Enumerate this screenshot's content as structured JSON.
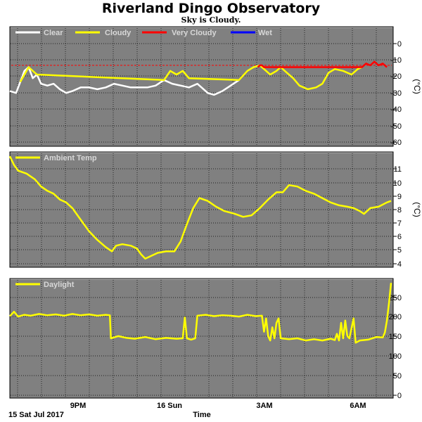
{
  "title": "Riverland Dingo Observatory",
  "subtitle": "Sky is Cloudy.",
  "date_label": "15 Sat Jul 2017",
  "x_axis_label": "Time",
  "x_ticks": [
    "9PM",
    "16 Sun",
    "3AM",
    "6AM"
  ],
  "colors": {
    "panel_bg": "#808080",
    "clear": "#ffffff",
    "cloudy": "#ffff00",
    "very_cloudy": "#ff0000",
    "wet": "#0000ff",
    "threshold": "#ff0000"
  },
  "chart_data": [
    {
      "type": "line",
      "legend": [
        "Clear",
        "Cloudy",
        "Very Cloudy",
        "Wet"
      ],
      "ylabel": "(°C)",
      "ylim": [
        -60,
        5
      ],
      "yticks": [
        "0",
        "-10",
        "-20",
        "-30",
        "-40",
        "-50",
        "-60"
      ],
      "threshold": -16,
      "series": [
        {
          "name": "Clear",
          "points": [
            [
              0.0,
              -30
            ],
            [
              0.3,
              -31
            ],
            [
              0.5,
              -25
            ],
            [
              0.7,
              -19
            ],
            [
              0.9,
              -17
            ],
            [
              1.1,
              -23
            ],
            [
              1.3,
              -21
            ],
            [
              1.5,
              -26
            ],
            [
              1.8,
              -27
            ],
            [
              2.1,
              -26
            ],
            [
              2.4,
              -29
            ],
            [
              2.7,
              -31
            ],
            [
              3.0,
              -30
            ],
            [
              3.4,
              -28
            ],
            [
              3.8,
              -28
            ],
            [
              4.2,
              -29
            ],
            [
              4.6,
              -28
            ],
            [
              5.0,
              -26
            ],
            [
              5.4,
              -27
            ],
            [
              5.8,
              -28
            ],
            [
              6.2,
              -28
            ],
            [
              6.6,
              -28
            ],
            [
              7.0,
              -27
            ],
            [
              7.4,
              -24
            ],
            [
              7.8,
              -26
            ],
            [
              8.2,
              -27
            ],
            [
              8.6,
              -28
            ],
            [
              9.0,
              -26
            ],
            [
              9.3,
              -29
            ],
            [
              9.5,
              -31
            ],
            [
              9.8,
              -32
            ],
            [
              10.2,
              -30
            ],
            [
              10.6,
              -27
            ],
            [
              11.0,
              -24
            ]
          ]
        },
        {
          "name": "Cloudy",
          "points": [
            [
              0.5,
              -25
            ],
            [
              0.9,
              -17
            ],
            [
              1.3,
              -21
            ],
            [
              7.4,
              -24
            ],
            [
              7.7,
              -19
            ],
            [
              8.0,
              -21
            ],
            [
              8.3,
              -19
            ],
            [
              8.6,
              -23
            ],
            [
              11.0,
              -24
            ],
            [
              11.4,
              -19
            ],
            [
              11.7,
              -17
            ],
            [
              12.0,
              -16
            ],
            [
              12.2,
              -18
            ],
            [
              12.5,
              -21
            ],
            [
              12.8,
              -19
            ],
            [
              13.0,
              -17
            ],
            [
              13.3,
              -20
            ],
            [
              13.6,
              -23
            ],
            [
              13.9,
              -27
            ],
            [
              14.3,
              -29
            ],
            [
              14.7,
              -28
            ],
            [
              15.0,
              -26
            ],
            [
              15.3,
              -20
            ],
            [
              15.6,
              -18
            ],
            [
              16.0,
              -19
            ],
            [
              16.4,
              -21
            ],
            [
              16.7,
              -18
            ],
            [
              16.9,
              -17
            ]
          ]
        },
        {
          "name": "Very Cloudy",
          "points": [
            [
              11.9,
              -17
            ],
            [
              12.0,
              -16
            ],
            [
              12.1,
              -16
            ],
            [
              12.2,
              -17
            ],
            [
              16.9,
              -17
            ],
            [
              17.1,
              -15
            ],
            [
              17.3,
              -16
            ],
            [
              17.5,
              -14
            ],
            [
              17.7,
              -16
            ],
            [
              17.9,
              -15
            ],
            [
              18.1,
              -17
            ]
          ]
        },
        {
          "name": "Wet",
          "points": []
        }
      ]
    },
    {
      "type": "line",
      "legend": [
        "Ambient Temp"
      ],
      "ylabel": "(°C)",
      "ylim": [
        3.5,
        11.5
      ],
      "yticks": [
        "11",
        "10",
        "9",
        "8",
        "7",
        "6",
        "5",
        "4"
      ],
      "series": [
        {
          "name": "Ambient Temp",
          "points": [
            [
              0.0,
              11.2
            ],
            [
              0.2,
              10.6
            ],
            [
              0.4,
              10.2
            ],
            [
              0.8,
              10.0
            ],
            [
              1.2,
              9.6
            ],
            [
              1.5,
              9.1
            ],
            [
              1.8,
              8.8
            ],
            [
              2.1,
              8.6
            ],
            [
              2.4,
              8.2
            ],
            [
              2.7,
              8.0
            ],
            [
              3.0,
              7.6
            ],
            [
              3.4,
              6.8
            ],
            [
              3.8,
              6.0
            ],
            [
              4.2,
              5.4
            ],
            [
              4.6,
              4.9
            ],
            [
              4.9,
              4.6
            ],
            [
              5.1,
              5.0
            ],
            [
              5.4,
              5.1
            ],
            [
              5.8,
              5.0
            ],
            [
              6.1,
              4.8
            ],
            [
              6.3,
              4.4
            ],
            [
              6.5,
              4.1
            ],
            [
              6.8,
              4.3
            ],
            [
              7.1,
              4.5
            ],
            [
              7.5,
              4.6
            ],
            [
              7.9,
              4.6
            ],
            [
              8.2,
              5.3
            ],
            [
              8.5,
              6.5
            ],
            [
              8.8,
              7.6
            ],
            [
              9.1,
              8.3
            ],
            [
              9.5,
              8.1
            ],
            [
              9.9,
              7.7
            ],
            [
              10.3,
              7.4
            ],
            [
              10.8,
              7.2
            ],
            [
              11.2,
              7.0
            ],
            [
              11.6,
              7.1
            ],
            [
              12.0,
              7.6
            ],
            [
              12.4,
              8.2
            ],
            [
              12.8,
              8.7
            ],
            [
              13.1,
              8.7
            ],
            [
              13.4,
              9.2
            ],
            [
              13.8,
              9.1
            ],
            [
              14.2,
              8.8
            ],
            [
              14.6,
              8.6
            ],
            [
              15.0,
              8.3
            ],
            [
              15.4,
              8.0
            ],
            [
              15.8,
              7.8
            ],
            [
              16.2,
              7.7
            ],
            [
              16.5,
              7.6
            ],
            [
              16.8,
              7.4
            ],
            [
              17.0,
              7.2
            ],
            [
              17.3,
              7.6
            ],
            [
              17.7,
              7.7
            ],
            [
              18.1,
              8.0
            ],
            [
              18.3,
              8.1
            ]
          ]
        }
      ]
    },
    {
      "type": "line",
      "legend": [
        "Daylight"
      ],
      "ylabel": "",
      "ylim": [
        0,
        270
      ],
      "yticks": [
        "250",
        "200",
        "150",
        "100",
        "50",
        "0"
      ],
      "series": [
        {
          "name": "Daylight",
          "points": [
            [
              0.0,
              185
            ],
            [
              0.2,
              195
            ],
            [
              0.4,
              184
            ],
            [
              0.7,
              188
            ],
            [
              1.0,
              186
            ],
            [
              1.4,
              190
            ],
            [
              1.8,
              187
            ],
            [
              2.2,
              189
            ],
            [
              2.6,
              186
            ],
            [
              3.0,
              190
            ],
            [
              3.4,
              187
            ],
            [
              3.8,
              189
            ],
            [
              4.2,
              186
            ],
            [
              4.6,
              188
            ],
            [
              4.8,
              187
            ],
            [
              4.85,
              135
            ],
            [
              5.2,
              140
            ],
            [
              5.6,
              136
            ],
            [
              6.0,
              134
            ],
            [
              6.5,
              138
            ],
            [
              7.0,
              133
            ],
            [
              7.5,
              136
            ],
            [
              8.0,
              134
            ],
            [
              8.3,
              135
            ],
            [
              8.4,
              182
            ],
            [
              8.5,
              135
            ],
            [
              8.7,
              132
            ],
            [
              8.9,
              135
            ],
            [
              9.0,
              186
            ],
            [
              9.4,
              188
            ],
            [
              9.8,
              185
            ],
            [
              10.2,
              187
            ],
            [
              10.6,
              186
            ],
            [
              11.0,
              184
            ],
            [
              11.4,
              188
            ],
            [
              11.8,
              185
            ],
            [
              12.1,
              186
            ],
            [
              12.2,
              150
            ],
            [
              12.3,
              180
            ],
            [
              12.4,
              140
            ],
            [
              12.5,
              130
            ],
            [
              12.6,
              160
            ],
            [
              12.7,
              135
            ],
            [
              12.8,
              170
            ],
            [
              12.9,
              180
            ],
            [
              13.0,
              135
            ],
            [
              13.4,
              133
            ],
            [
              13.8,
              135
            ],
            [
              14.2,
              130
            ],
            [
              14.6,
              133
            ],
            [
              15.0,
              130
            ],
            [
              15.4,
              134
            ],
            [
              15.6,
              131
            ],
            [
              15.7,
              145
            ],
            [
              15.8,
              130
            ],
            [
              15.9,
              170
            ],
            [
              16.0,
              135
            ],
            [
              16.1,
              175
            ],
            [
              16.2,
              140
            ],
            [
              16.3,
              135
            ],
            [
              16.5,
              180
            ],
            [
              16.6,
              125
            ],
            [
              16.8,
              130
            ],
            [
              17.2,
              132
            ],
            [
              17.6,
              138
            ],
            [
              17.9,
              137
            ],
            [
              18.0,
              148
            ],
            [
              18.1,
              175
            ],
            [
              18.2,
              215
            ],
            [
              18.3,
              260
            ]
          ]
        }
      ]
    }
  ]
}
